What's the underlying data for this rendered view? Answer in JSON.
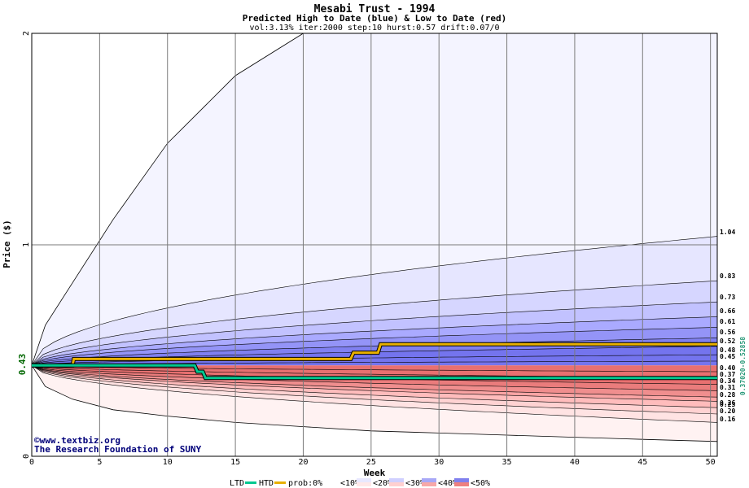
{
  "chart_data": {
    "type": "area",
    "title": "Mesabi Trust - 1994",
    "subtitle": "Predicted High to Date (blue) &  Low to Date (red)",
    "params": "vol:3.13% iter:2000 step:10 hurst:0.57 drift:0.07/0",
    "xlabel": "Week",
    "ylabel": "Price ($)",
    "xlim": [
      0,
      50.5
    ],
    "ylim": [
      0,
      2
    ],
    "x_ticks": [
      "0",
      "5",
      "10",
      "15",
      "20",
      "25",
      "30",
      "35",
      "40",
      "45",
      "50"
    ],
    "y_ticks": [
      "0",
      "1",
      "2"
    ],
    "start_price_label": "0.43",
    "grid": true,
    "credit_line1": "©www.textbiz.org",
    "credit_line2": "The Research Foundation of SUNY",
    "right_side_values": "0.37020-0.52858",
    "right_labels": {
      "high": [
        "1.04",
        "0.83",
        "0.73",
        "0.66",
        "0.61",
        "0.56",
        "0.52",
        "0.48",
        "0.45"
      ],
      "low": [
        "0.40",
        "0.37",
        "0.34",
        "0.31",
        "0.28",
        "0.26",
        "0.23",
        "0.20",
        "0.16"
      ]
    },
    "end_values": {
      "high": [
        1.04,
        0.83,
        0.73,
        0.66,
        0.61,
        0.56,
        0.52,
        0.48,
        0.45
      ],
      "low": [
        0.4,
        0.37,
        0.34,
        0.31,
        0.28,
        0.26,
        0.23,
        0.2,
        0.16
      ]
    },
    "series": [
      {
        "name": "HTD",
        "color": "#e8b000",
        "x": [
          0,
          3,
          3.1,
          23.5,
          23.7,
          25.5,
          25.7,
          50.5
        ],
        "y": [
          0.43,
          0.43,
          0.46,
          0.46,
          0.49,
          0.49,
          0.53,
          0.53
        ]
      },
      {
        "name": "LTD",
        "color": "#00c890",
        "x": [
          0,
          12,
          12.2,
          12.6,
          12.8,
          50.5
        ],
        "y": [
          0.43,
          0.43,
          0.4,
          0.4,
          0.37,
          0.37
        ]
      }
    ],
    "outer_high": {
      "x": [
        0,
        1,
        3,
        6,
        10,
        15,
        20
      ],
      "y": [
        0.43,
        0.62,
        0.82,
        1.12,
        1.48,
        1.8,
        2.0
      ]
    },
    "outer_low": {
      "x": [
        0,
        1,
        3,
        6,
        10,
        15,
        20,
        25,
        30,
        35,
        40,
        45,
        50.5
      ],
      "y": [
        0.43,
        0.33,
        0.27,
        0.22,
        0.19,
        0.16,
        0.14,
        0.12,
        0.11,
        0.1,
        0.09,
        0.08,
        0.07
      ]
    },
    "legend": {
      "ltd": "LTD",
      "htd": "HTD",
      "prob": "prob:0%",
      "items": [
        "<10%",
        "<20%",
        "<30%",
        "<40%",
        "<50%"
      ]
    },
    "colors": {
      "ltd": "#00c890",
      "htd": "#e8b000",
      "blue_bands": [
        "#f4f4ff",
        "#e6e6ff",
        "#d6d6ff",
        "#c2c2ff",
        "#aaaaff",
        "#9494f7",
        "#8080f0",
        "#7474ee"
      ],
      "red_bands": [
        "#fff2f2",
        "#ffe3e3",
        "#ffd2d2",
        "#ffbcbc",
        "#faa4a4",
        "#f08e8e",
        "#ea7c7c",
        "#e87070"
      ]
    }
  }
}
